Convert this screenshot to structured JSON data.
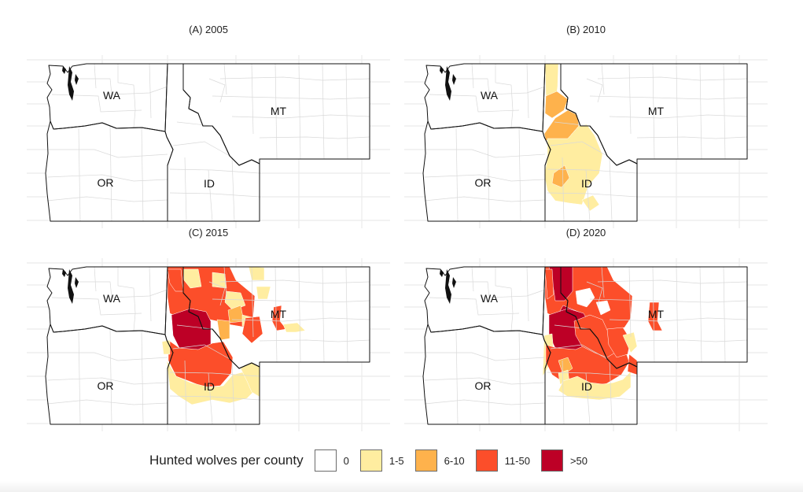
{
  "map": {
    "panels": [
      {
        "title": "(A) 2005",
        "key": "a"
      },
      {
        "title": "(B) 2010",
        "key": "b"
      },
      {
        "title": "(C) 2015",
        "key": "c"
      },
      {
        "title": "(D) 2020",
        "key": "d"
      }
    ],
    "state_labels": {
      "wa": "WA",
      "or": "OR",
      "id": "ID",
      "mt": "MT"
    },
    "legend": {
      "title": "Hunted wolves per county",
      "classes": [
        {
          "label": "0",
          "color": "#ffffff"
        },
        {
          "label": "1-5",
          "color": "#ffeda0"
        },
        {
          "label": "6-10",
          "color": "#feb24c"
        },
        {
          "label": "11-50",
          "color": "#fc4e2a"
        },
        {
          "label": ">50",
          "color": "#bd0026"
        }
      ]
    },
    "colors": {
      "county_border": "#d9d9d9",
      "state_border": "#111111",
      "graticule": "#ebebeb"
    }
  }
}
